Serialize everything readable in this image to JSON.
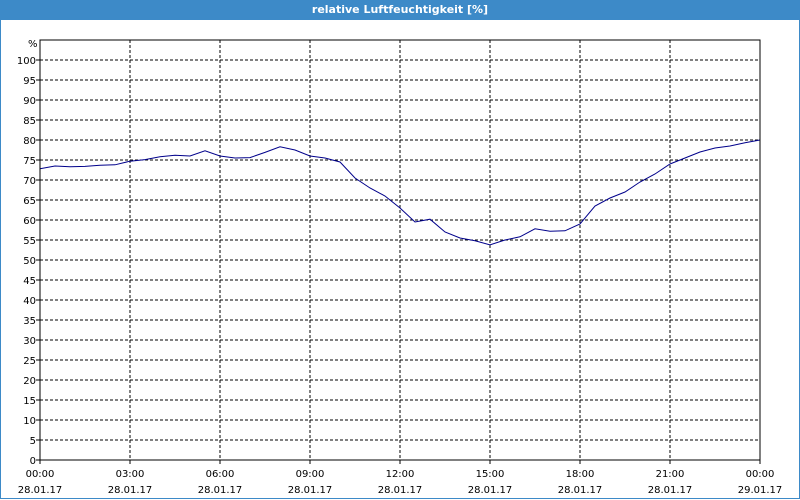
{
  "window": {
    "title": "relative Luftfeuchtigkeit [%]"
  },
  "chart_data": {
    "type": "line",
    "title": "relative Luftfeuchtigkeit [%]",
    "ylabel": "%",
    "xlabel": "",
    "ylim": [
      0,
      105
    ],
    "yticks": [
      0,
      5,
      10,
      15,
      20,
      25,
      30,
      35,
      40,
      45,
      50,
      55,
      60,
      65,
      70,
      75,
      80,
      85,
      90,
      95,
      100
    ],
    "xlim": [
      "28.01.17 00:00",
      "29.01.17 00:00"
    ],
    "xticks": [
      {
        "time": "00:00",
        "date": "28.01.17"
      },
      {
        "time": "03:00",
        "date": "28.01.17"
      },
      {
        "time": "06:00",
        "date": "28.01.17"
      },
      {
        "time": "09:00",
        "date": "28.01.17"
      },
      {
        "time": "12:00",
        "date": "28.01.17"
      },
      {
        "time": "15:00",
        "date": "28.01.17"
      },
      {
        "time": "18:00",
        "date": "28.01.17"
      },
      {
        "time": "21:00",
        "date": "28.01.17"
      },
      {
        "time": "00:00",
        "date": "29.01.17"
      }
    ],
    "grid": true,
    "colors": {
      "line": "#00008b",
      "axis": "#000000",
      "grid": "#000000"
    },
    "series": [
      {
        "x": [
          "28.01.17 00:00",
          "28.01.17 00:30",
          "28.01.17 01:00",
          "28.01.17 01:30",
          "28.01.17 02:00",
          "28.01.17 02:30",
          "28.01.17 03:00",
          "28.01.17 03:30",
          "28.01.17 04:00",
          "28.01.17 04:30",
          "28.01.17 05:00",
          "28.01.17 05:30",
          "28.01.17 06:00",
          "28.01.17 06:30",
          "28.01.17 07:00",
          "28.01.17 07:30",
          "28.01.17 08:00",
          "28.01.17 08:30",
          "28.01.17 09:00",
          "28.01.17 09:30",
          "28.01.17 10:00",
          "28.01.17 10:30",
          "28.01.17 11:00",
          "28.01.17 11:30",
          "28.01.17 12:00",
          "28.01.17 12:30",
          "28.01.17 13:00",
          "28.01.17 13:30",
          "28.01.17 14:00",
          "28.01.17 14:30",
          "28.01.17 15:00",
          "28.01.17 15:30",
          "28.01.17 16:00",
          "28.01.17 16:30",
          "28.01.17 17:00",
          "28.01.17 17:30",
          "28.01.17 18:00",
          "28.01.17 18:30",
          "28.01.17 19:00",
          "28.01.17 19:30",
          "28.01.17 20:00",
          "28.01.17 20:30",
          "28.01.17 21:00",
          "28.01.17 21:30",
          "28.01.17 22:00",
          "28.01.17 22:30",
          "28.01.17 23:00",
          "28.01.17 23:30",
          "29.01.17 00:00"
        ],
        "values": [
          72.8,
          73.5,
          73.3,
          73.4,
          73.7,
          73.8,
          74.7,
          75.1,
          75.8,
          76.2,
          76.0,
          77.3,
          76.0,
          75.5,
          75.6,
          76.9,
          78.3,
          77.5,
          76.0,
          75.5,
          74.5,
          70.5,
          68.0,
          66.0,
          63.0,
          59.5,
          60.2,
          57.0,
          55.5,
          54.8,
          53.8,
          55.0,
          55.8,
          57.8,
          57.2,
          57.3,
          59.0,
          63.5,
          65.5,
          67.0,
          69.5,
          71.5,
          74.0,
          75.5,
          77.0,
          78.0,
          78.5,
          79.3,
          80.0
        ]
      }
    ]
  }
}
